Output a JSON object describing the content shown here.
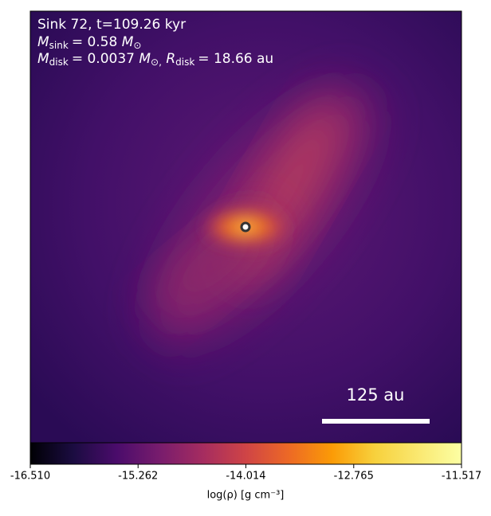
{
  "chart_data": {
    "type": "density-map",
    "annotation": {
      "title": "Sink 72, t=109.26 kyr",
      "sink_mass": {
        "symbol": "M",
        "subscript": "sink",
        "value": "= 0.58",
        "unit": "M",
        "unit_subscript": "⊙"
      },
      "disk": {
        "symbol": "M",
        "subscript": "disk",
        "value": "= 0.0037",
        "unit": "M",
        "unit_subscript": "⊙,",
        "radius_symbol": "R",
        "radius_subscript": "disk",
        "radius_value": "= 18.66 au"
      }
    },
    "scale_bar": "125 au",
    "colorbar": {
      "label": "log(ρ) [g cm⁻³]",
      "colormap": "inferno",
      "clim": [
        -16.51,
        -11.517
      ],
      "ticks": [
        {
          "value": -16.51,
          "label": "-16.510"
        },
        {
          "value": -15.262,
          "label": "-15.262"
        },
        {
          "value": -14.014,
          "label": "-14.014"
        },
        {
          "value": -12.765,
          "label": "-12.765"
        },
        {
          "value": -11.517,
          "label": "-11.517"
        }
      ]
    }
  }
}
